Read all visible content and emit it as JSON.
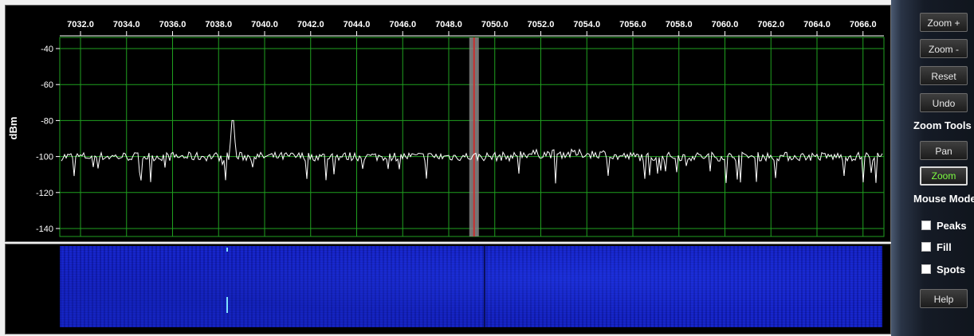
{
  "spectrum": {
    "y_axis_label": "dBm",
    "y_ticks": [
      "-40",
      "-60",
      "-80",
      "-100",
      "-120",
      "-140"
    ],
    "freq_ticks": [
      "7032.0",
      "7034.0",
      "7036.0",
      "7038.0",
      "7040.0",
      "7042.0",
      "7044.0",
      "7046.0",
      "7048.0",
      "7050.0",
      "7052.0",
      "7054.0",
      "7056.0",
      "7058.0",
      "7060.0",
      "7062.0",
      "7064.0",
      "7066.0"
    ],
    "noise_floor_dbm": -100,
    "signal_peak": {
      "freq": 7038.6,
      "dbm": -80
    },
    "marker_freq": 7049.1,
    "colors": {
      "grid": "#1fa01f",
      "trace": "#ffffff",
      "marker": "#c83030",
      "marker_band": "#8a8a8a"
    }
  },
  "waterfall": {
    "colors": {
      "base": "#1422c8",
      "signal": "#7fe0ff"
    }
  },
  "sidebar": {
    "zoom_in": "Zoom +",
    "zoom_out": "Zoom -",
    "reset": "Reset",
    "undo": "Undo",
    "zoom_tools_label": "Zoom Tools",
    "pan": "Pan",
    "zoom": "Zoom",
    "mouse_mode_label": "Mouse Mode",
    "peaks": "Peaks",
    "fill": "Fill",
    "spots": "Spots",
    "help": "Help"
  }
}
